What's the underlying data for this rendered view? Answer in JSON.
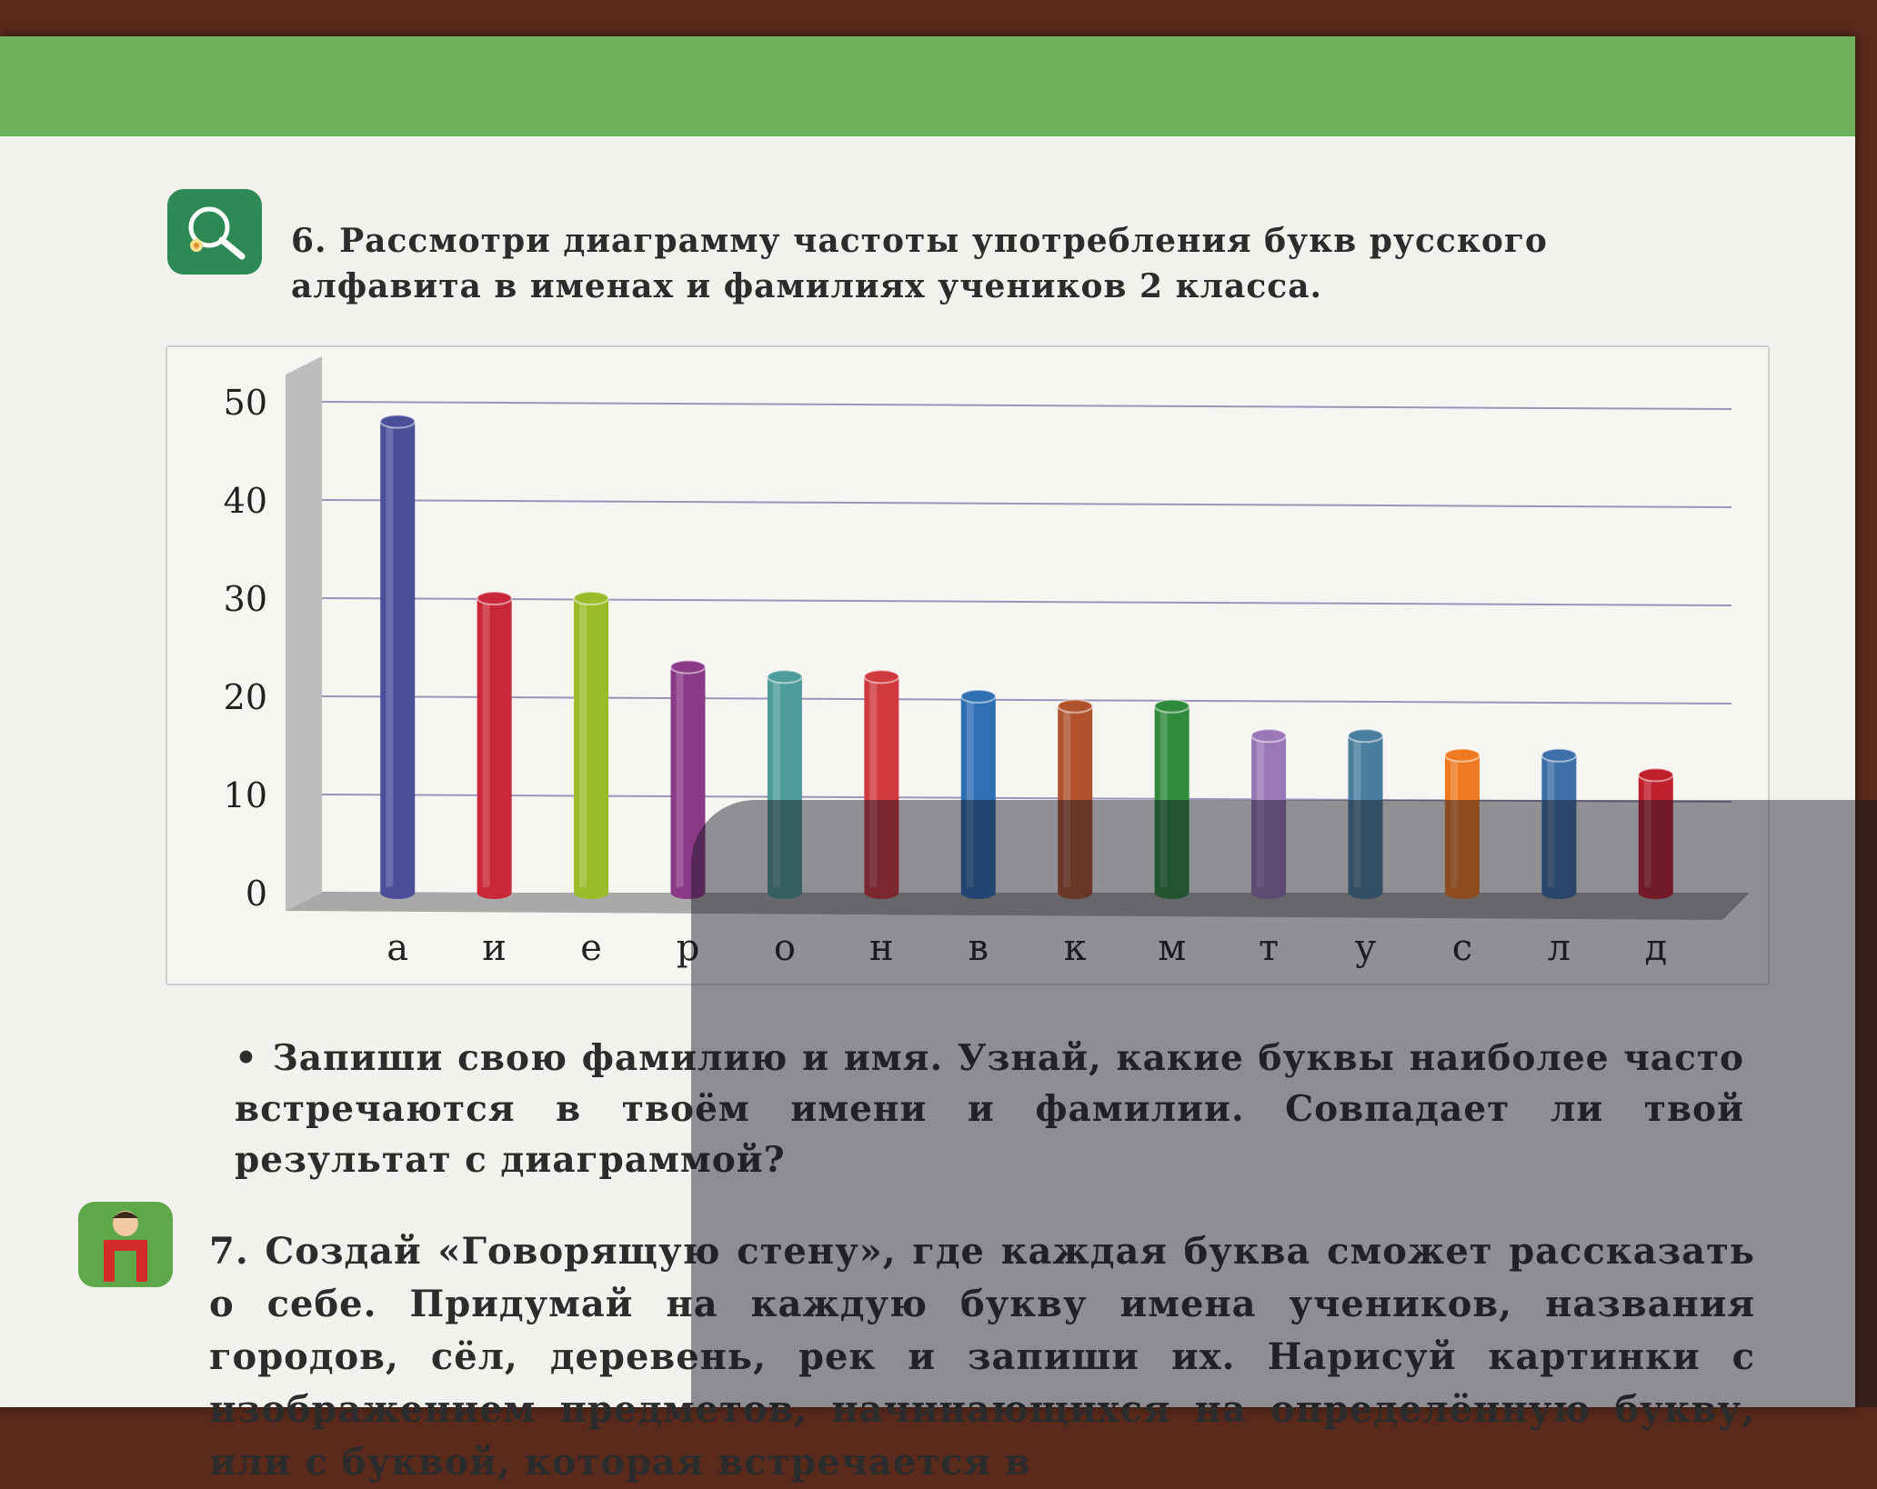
{
  "task6": {
    "text": "6. Рассмотри диаграмму частоты употребления букв русского алфавита в именах и фамилиях учеников 2 класса."
  },
  "bullet": {
    "text": "• Запиши свою фамилию и имя. Узнай, какие буквы наиболее часто встречаются в твоём имени и фамилии. Совпадает ли твой результат с диаграммой?"
  },
  "task7": {
    "text": "7. Создай «Говорящую стену», где каждая буква сможет рассказать о себе. Придумай на каждую букву имена учеников, названия городов, сёл, деревень, рек и запиши их. Нарисуй картинки с изображением предметов, начинающихся на определённую букву, или с буквой, которая встречается в"
  },
  "icons": {
    "task6": "magnifier-flower-icon",
    "task7": "child-letter-p-icon"
  },
  "colors": {
    "band": "#6db25a",
    "icon6": "#2e8a55",
    "icon7": "#5fa84a"
  },
  "chart_data": {
    "type": "bar",
    "categories": [
      "а",
      "и",
      "е",
      "р",
      "о",
      "н",
      "в",
      "к",
      "м",
      "т",
      "у",
      "с",
      "л",
      "д"
    ],
    "values": [
      48,
      30,
      30,
      23,
      22,
      22,
      20,
      19,
      19,
      16,
      16,
      14,
      14,
      12
    ],
    "colors": [
      "#4b4f9a",
      "#c8283a",
      "#9cbb2a",
      "#8a3a86",
      "#4f9d9a",
      "#d03a3f",
      "#2f6fb4",
      "#b0522e",
      "#2f8a3c",
      "#9a78b8",
      "#4a7e9e",
      "#f07a22",
      "#3d6fa8",
      "#c0202e"
    ],
    "y_ticks": [
      "0",
      "10",
      "20",
      "30",
      "40",
      "50"
    ],
    "ylim": [
      0,
      50
    ],
    "grid": true
  }
}
